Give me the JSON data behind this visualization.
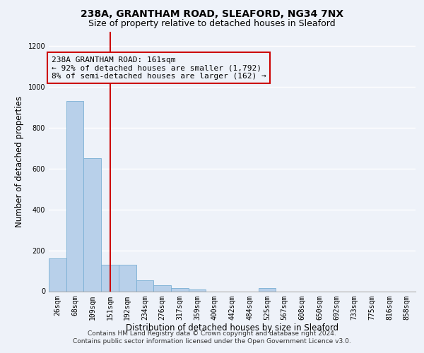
{
  "title1": "238A, GRANTHAM ROAD, SLEAFORD, NG34 7NX",
  "title2": "Size of property relative to detached houses in Sleaford",
  "xlabel": "Distribution of detached houses by size in Sleaford",
  "ylabel": "Number of detached properties",
  "footer1": "Contains HM Land Registry data © Crown copyright and database right 2024.",
  "footer2": "Contains public sector information licensed under the Open Government Licence v3.0.",
  "bin_labels": [
    "26sqm",
    "68sqm",
    "109sqm",
    "151sqm",
    "192sqm",
    "234sqm",
    "276sqm",
    "317sqm",
    "359sqm",
    "400sqm",
    "442sqm",
    "484sqm",
    "525sqm",
    "567sqm",
    "608sqm",
    "650sqm",
    "692sqm",
    "733sqm",
    "775sqm",
    "816sqm",
    "858sqm"
  ],
  "values": [
    160,
    930,
    650,
    130,
    130,
    55,
    30,
    15,
    10,
    0,
    0,
    0,
    15,
    0,
    0,
    0,
    0,
    0,
    0,
    0,
    0
  ],
  "bar_color": "#b8d0ea",
  "bar_edge_color": "#7aafd4",
  "vline_x_index": 3,
  "vline_color": "#cc0000",
  "annotation_line1": "238A GRANTHAM ROAD: 161sqm",
  "annotation_line2": "← 92% of detached houses are smaller (1,792)",
  "annotation_line3": "8% of semi-detached houses are larger (162) →",
  "annotation_box_color": "#cc0000",
  "ylim": [
    0,
    1270
  ],
  "yticks": [
    0,
    200,
    400,
    600,
    800,
    1000,
    1200
  ],
  "background_color": "#eef2f9",
  "grid_color": "#ffffff",
  "title_fontsize": 10,
  "subtitle_fontsize": 9,
  "axis_label_fontsize": 8.5,
  "tick_fontsize": 7,
  "annotation_fontsize": 8,
  "footer_fontsize": 6.5
}
